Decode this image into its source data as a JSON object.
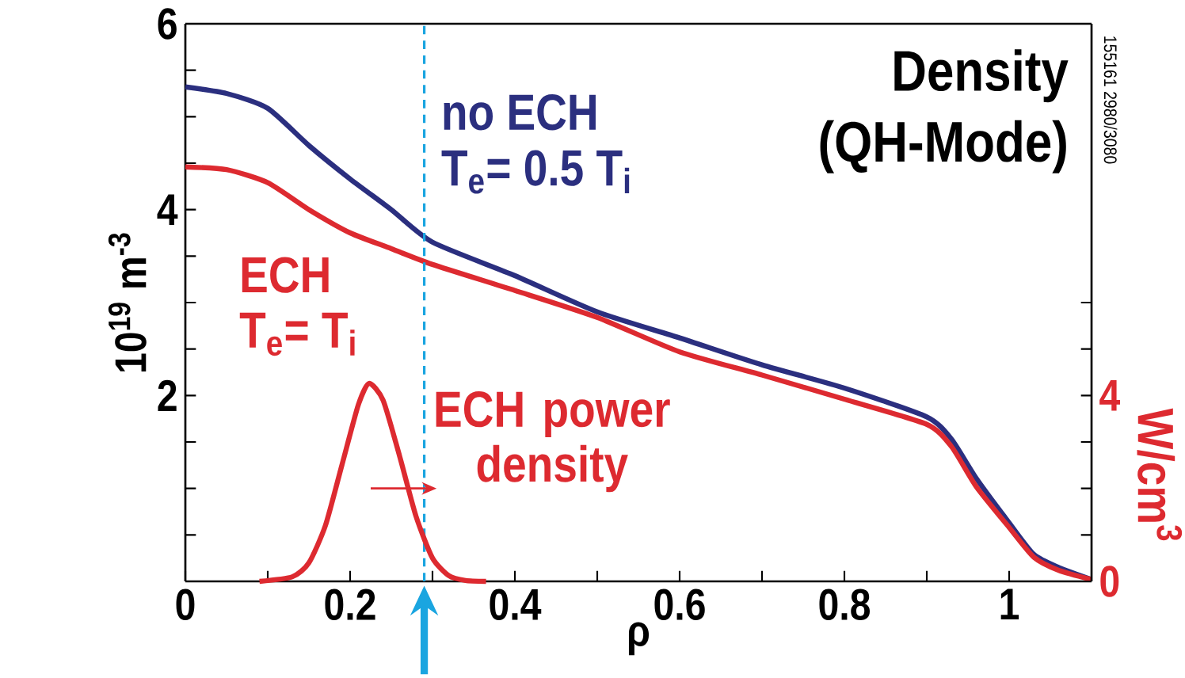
{
  "chart_data": {
    "type": "line",
    "title": "Density",
    "subtitle": "(QH-Mode)",
    "xlabel": "ρ",
    "ylabel": "10$^{19}$ m$^{-3}$",
    "y2label": "W/cm$^{3}$",
    "annotations": [
      "T$_{e}$= 0.5 T$_{i}$",
      "T$_{e}$= T$_{i}$",
      "155161  2980/3080"
    ],
    "series": [
      {
        "name": "no ECH",
        "color": "#2b2f7f",
        "x": [
          0,
          0.05,
          0.1,
          0.15,
          0.2,
          0.25,
          0.3,
          0.4,
          0.5,
          0.6,
          0.7,
          0.8,
          0.9,
          0.93,
          0.96,
          1.0,
          1.03,
          1.06,
          1.1
        ],
        "values": [
          5.32,
          5.25,
          5.09,
          4.69,
          4.33,
          4.0,
          3.65,
          3.29,
          2.9,
          2.62,
          2.33,
          2.08,
          1.77,
          1.53,
          1.11,
          0.63,
          0.29,
          0.15,
          0.02
        ]
      },
      {
        "name": "ECH",
        "color": "#dd2a30",
        "x": [
          0,
          0.05,
          0.1,
          0.15,
          0.2,
          0.25,
          0.3,
          0.4,
          0.5,
          0.6,
          0.7,
          0.8,
          0.9,
          0.93,
          0.96,
          1.0,
          1.03,
          1.06,
          1.1
        ],
        "values": [
          4.46,
          4.43,
          4.29,
          4.0,
          3.75,
          3.58,
          3.41,
          3.13,
          2.84,
          2.47,
          2.22,
          1.96,
          1.69,
          1.45,
          1.02,
          0.58,
          0.26,
          0.12,
          0.02
        ]
      },
      {
        "name": "ECH power density",
        "color": "#dd2a30",
        "axis": "y2",
        "x": [
          0.09,
          0.13,
          0.15,
          0.17,
          0.19,
          0.21,
          0.223,
          0.24,
          0.26,
          0.28,
          0.3,
          0.32,
          0.34,
          0.365
        ],
        "values": [
          0,
          0.1,
          0.4,
          1.2,
          2.5,
          3.8,
          4.26,
          3.9,
          2.7,
          1.4,
          0.5,
          0.12,
          0.02,
          0
        ]
      }
    ],
    "xlim": [
      0,
      1.1
    ],
    "ylim": [
      0,
      6
    ],
    "y2lim": [
      0,
      12
    ],
    "xticks": [
      0,
      {
        "value": 0.1,
        "label": null
      },
      0.2,
      {
        "value": 0.3,
        "label": null
      },
      0.4,
      {
        "value": 0.5,
        "label": null
      },
      0.6,
      {
        "value": 0.7,
        "label": null
      },
      0.8,
      {
        "value": 0.9,
        "label": null
      },
      1
    ],
    "yticks": [
      {
        "value": 0.5,
        "label": null
      },
      {
        "value": 1,
        "label": null
      },
      {
        "value": 1.5,
        "label": null
      },
      2,
      {
        "value": 2.5,
        "label": null
      },
      {
        "value": 3,
        "label": null
      },
      {
        "value": 3.5,
        "label": null
      },
      4,
      {
        "value": 4.5,
        "label": null
      },
      {
        "value": 5,
        "label": null
      },
      {
        "value": 5.5,
        "label": null
      },
      6
    ],
    "y2ticks": [
      0,
      {
        "value": 1,
        "label": null
      },
      {
        "value": 2,
        "label": null
      },
      {
        "value": 3,
        "label": null
      },
      4,
      {
        "value": 5,
        "label": null
      },
      {
        "value": 6,
        "label": null
      }
    ],
    "ref_lines": [
      {
        "axis": "x",
        "value": 0.29,
        "color": "#1aa5e0",
        "line_style": "dashed"
      }
    ],
    "grid": false,
    "marker": "none",
    "line_style": "solid"
  }
}
